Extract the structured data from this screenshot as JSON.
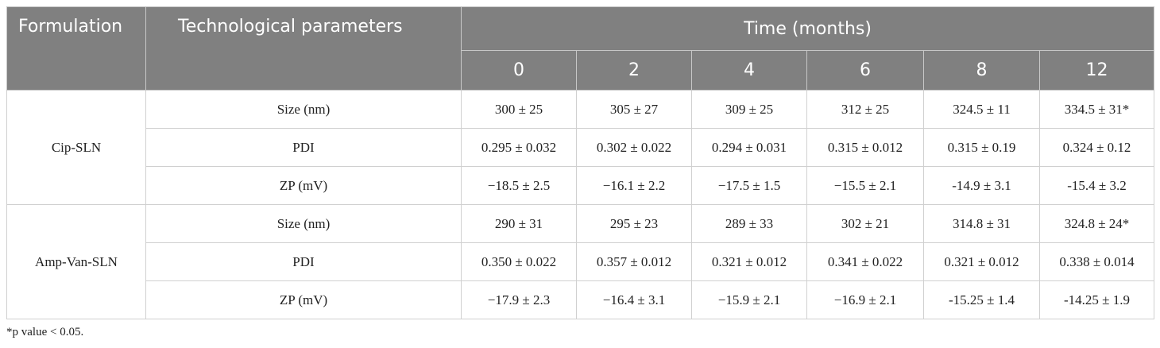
{
  "header": {
    "formulation": "Formulation",
    "parameters": "Technological parameters",
    "time": "Time (months)",
    "months": [
      0,
      2,
      4,
      6,
      8,
      12
    ]
  },
  "groups": [
    {
      "formulation": "Cip-SLN",
      "rows": [
        {
          "parameter": "Size (nm)",
          "values": [
            "300 ± 25",
            "305 ± 27",
            "309 ± 25",
            "312 ± 25",
            "324.5 ± 11",
            "334.5 ± 31*"
          ]
        },
        {
          "parameter": "PDI",
          "values": [
            "0.295 ± 0.032",
            "0.302 ± 0.022",
            "0.294 ± 0.031",
            "0.315 ± 0.012",
            "0.315 ± 0.19",
            "0.324 ± 0.12"
          ]
        },
        {
          "parameter": "ZP (mV)",
          "values": [
            "−18.5 ± 2.5",
            "−16.1 ± 2.2",
            "−17.5 ± 1.5",
            "−15.5 ± 2.1",
            "-14.9 ± 3.1",
            "-15.4 ± 3.2"
          ]
        }
      ]
    },
    {
      "formulation": "Amp-Van-SLN",
      "rows": [
        {
          "parameter": "Size (nm)",
          "values": [
            "290 ± 31",
            "295 ± 23",
            "289 ± 33",
            "302 ± 21",
            "314.8 ± 31",
            "324.8 ± 24*"
          ]
        },
        {
          "parameter": "PDI",
          "values": [
            "0.350 ± 0.022",
            "0.357 ± 0.012",
            "0.321 ± 0.012",
            "0.341 ± 0.022",
            "0.321 ± 0.012",
            "0.338 ± 0.014"
          ]
        },
        {
          "parameter": "ZP (mV)",
          "values": [
            "−17.9 ± 2.3",
            "−16.4 ± 3.1",
            "−15.9 ± 2.1",
            "−16.9 ± 2.1",
            "-15.25 ± 1.4",
            "-14.25 ± 1.9"
          ]
        }
      ]
    }
  ],
  "footnote": "*p value < 0.05."
}
